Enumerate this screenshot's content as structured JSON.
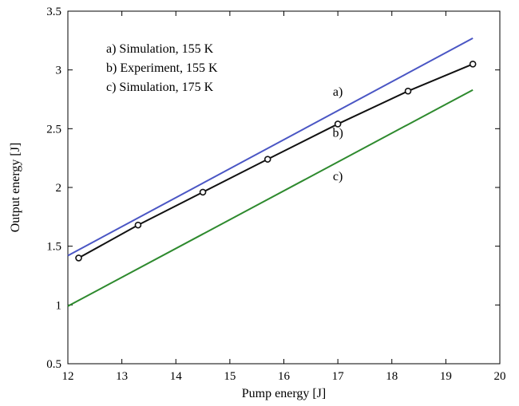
{
  "chart_data": {
    "type": "line",
    "xlabel": "Pump energy [J]",
    "ylabel": "Output energy [J]",
    "xlim": [
      12,
      20
    ],
    "ylim": [
      0.5,
      3.5
    ],
    "x_ticks": [
      "12",
      "13",
      "14",
      "15",
      "16",
      "17",
      "18",
      "19",
      "20"
    ],
    "y_ticks": [
      "0.5",
      "1",
      "1.5",
      "2",
      "2.5",
      "3",
      "3.5"
    ],
    "grid": false,
    "legend_text": [
      "a) Simulation, 155 K",
      "b) Experiment, 155 K",
      "c) Simulation, 175 K"
    ],
    "legend_placement": "top-left",
    "series": [
      {
        "name": "a) Simulation, 155 K",
        "label": "a)",
        "color": "#4a56c4",
        "marker": "none",
        "x": [
          12.0,
          19.5
        ],
        "y": [
          1.42,
          3.27
        ]
      },
      {
        "name": "b) Experiment, 155 K",
        "label": "b)",
        "color": "#111111",
        "marker": "circle",
        "x": [
          12.2,
          13.3,
          14.5,
          15.7,
          17.0,
          18.3,
          19.5
        ],
        "y": [
          1.4,
          1.68,
          1.96,
          2.24,
          2.54,
          2.82,
          3.05
        ]
      },
      {
        "name": "c) Simulation, 175 K",
        "label": "c)",
        "color": "#2e8a2e",
        "marker": "none",
        "x": [
          12.0,
          19.5
        ],
        "y": [
          0.99,
          2.83
        ]
      }
    ],
    "annotations": [
      {
        "text": "a)",
        "x": 17.0,
        "y": 2.78
      },
      {
        "text": "b)",
        "x": 17.0,
        "y": 2.43
      },
      {
        "text": "c)",
        "x": 17.0,
        "y": 2.06
      }
    ]
  }
}
